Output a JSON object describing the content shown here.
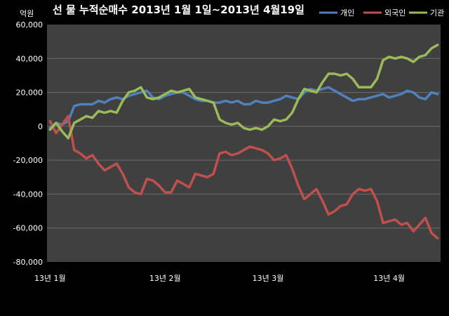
{
  "chart_data": {
    "type": "line",
    "title": "선 물 누적순매수 2013년 1월 1일~2013년 4월19일",
    "ylabel": "억원",
    "ylim": [
      -80000,
      60000
    ],
    "yticks": [
      "60,000",
      "40,000",
      "20,000",
      "0",
      "-20,000",
      "-40,000",
      "-60,000",
      "-80,000"
    ],
    "yticks_values": [
      60000,
      40000,
      20000,
      0,
      -20000,
      -40000,
      -60000,
      -80000
    ],
    "xticks": [
      "13년 1월",
      "13년 2월",
      "13년 3월",
      "13년 4월"
    ],
    "xticks_index": [
      0,
      19,
      36,
      56
    ],
    "grid": true,
    "legend_position": "top-right",
    "series": [
      {
        "name": "개인",
        "color": "#4f81bd",
        "values": [
          -1000,
          2000,
          1000,
          3000,
          12000,
          13000,
          13000,
          13000,
          15000,
          14000,
          16000,
          17000,
          16000,
          18000,
          19000,
          20000,
          21000,
          17000,
          16000,
          18000,
          19000,
          20000,
          20000,
          18000,
          16000,
          15000,
          15000,
          14000,
          14000,
          15000,
          14000,
          15000,
          13000,
          13000,
          15000,
          14000,
          14000,
          15000,
          16000,
          18000,
          17000,
          16000,
          20000,
          22000,
          21000,
          22000,
          23000,
          21000,
          19000,
          17000,
          15000,
          16000,
          16000,
          17000,
          18000,
          19000,
          17000,
          18000,
          19000,
          21000,
          20000,
          17000,
          16000,
          20000,
          19000
        ]
      },
      {
        "name": "외국인",
        "color": "#c0504d",
        "values": [
          3000,
          -4000,
          1000,
          6000,
          -14000,
          -16000,
          -19000,
          -17000,
          -22000,
          -26000,
          -24000,
          -22000,
          -28000,
          -36000,
          -39000,
          -40000,
          -31000,
          -32000,
          -35000,
          -39000,
          -39000,
          -32000,
          -34000,
          -36000,
          -28000,
          -29000,
          -30000,
          -28000,
          -16000,
          -15000,
          -17000,
          -16000,
          -14000,
          -12000,
          -13000,
          -14000,
          -16000,
          -20000,
          -19000,
          -17000,
          -25000,
          -35000,
          -43000,
          -40000,
          -37000,
          -44000,
          -52000,
          -50000,
          -47000,
          -46000,
          -40000,
          -37000,
          -38000,
          -37000,
          -44000,
          -57000,
          -56000,
          -55000,
          -58000,
          -57000,
          -62000,
          -58000,
          -54000,
          -63000,
          -66000
        ]
      },
      {
        "name": "기관",
        "color": "#9bbb59",
        "values": [
          -2000,
          2000,
          -3000,
          -7000,
          2000,
          4000,
          6000,
          5000,
          9000,
          8000,
          9000,
          8000,
          15000,
          20000,
          21000,
          23000,
          17000,
          16000,
          17000,
          19000,
          21000,
          20000,
          21000,
          22000,
          17000,
          16000,
          15000,
          14000,
          4000,
          2000,
          1000,
          2000,
          -1000,
          -2000,
          -1000,
          -2000,
          0,
          4000,
          3000,
          4000,
          8000,
          16000,
          22000,
          21000,
          20000,
          26000,
          31000,
          31000,
          30000,
          31000,
          28000,
          23000,
          23000,
          23000,
          28000,
          39000,
          41000,
          40000,
          41000,
          40000,
          38000,
          41000,
          42000,
          46000,
          48000
        ]
      }
    ]
  }
}
